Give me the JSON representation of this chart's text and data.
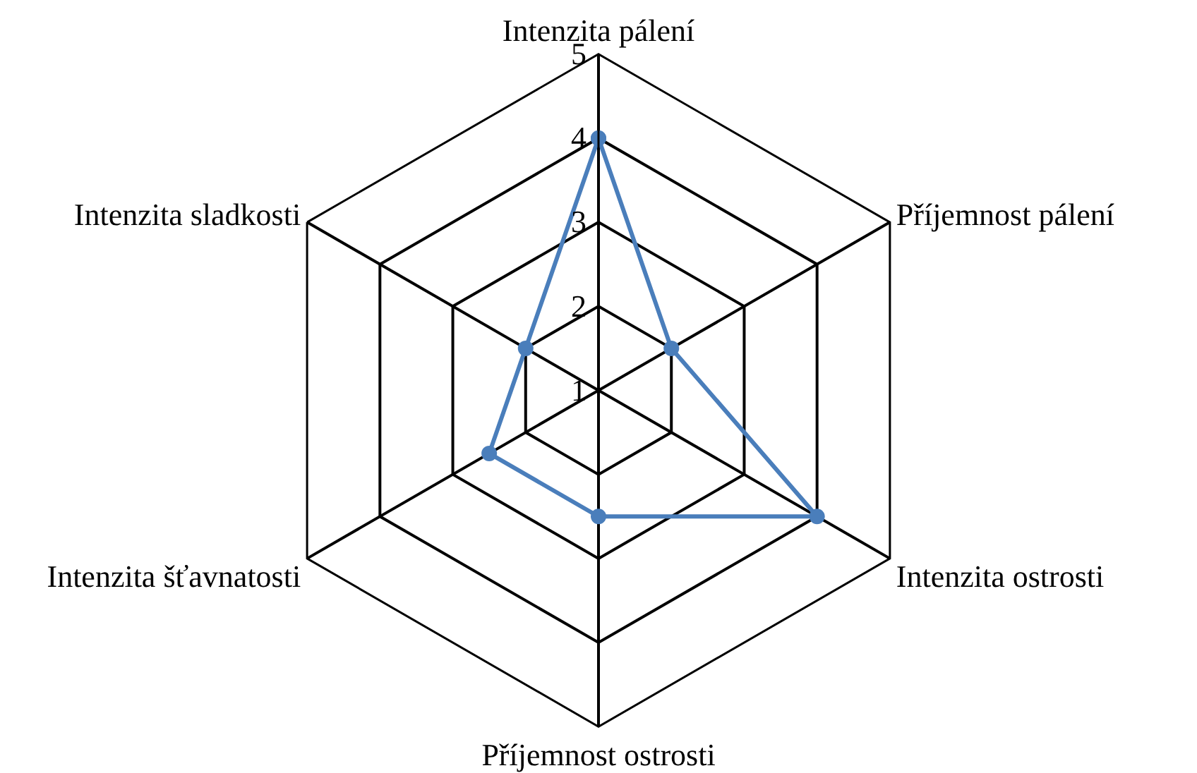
{
  "chart_data": {
    "type": "radar",
    "categories": [
      "Intenzita pálení",
      "Příjemnost pálení",
      "Intenzita ostrosti",
      "Příjemnost ostrosti",
      "Intenzita šťavnatosti",
      "Intenzita sladkosti"
    ],
    "series": [
      {
        "color": "#4a7ebb",
        "values": [
          4,
          2,
          4,
          2.5,
          2.5,
          2
        ]
      }
    ],
    "ylim": [
      1,
      5
    ],
    "yticks": [
      1,
      2,
      3,
      4,
      5
    ],
    "grid": true,
    "marker": "circle",
    "line_style": "solid"
  }
}
